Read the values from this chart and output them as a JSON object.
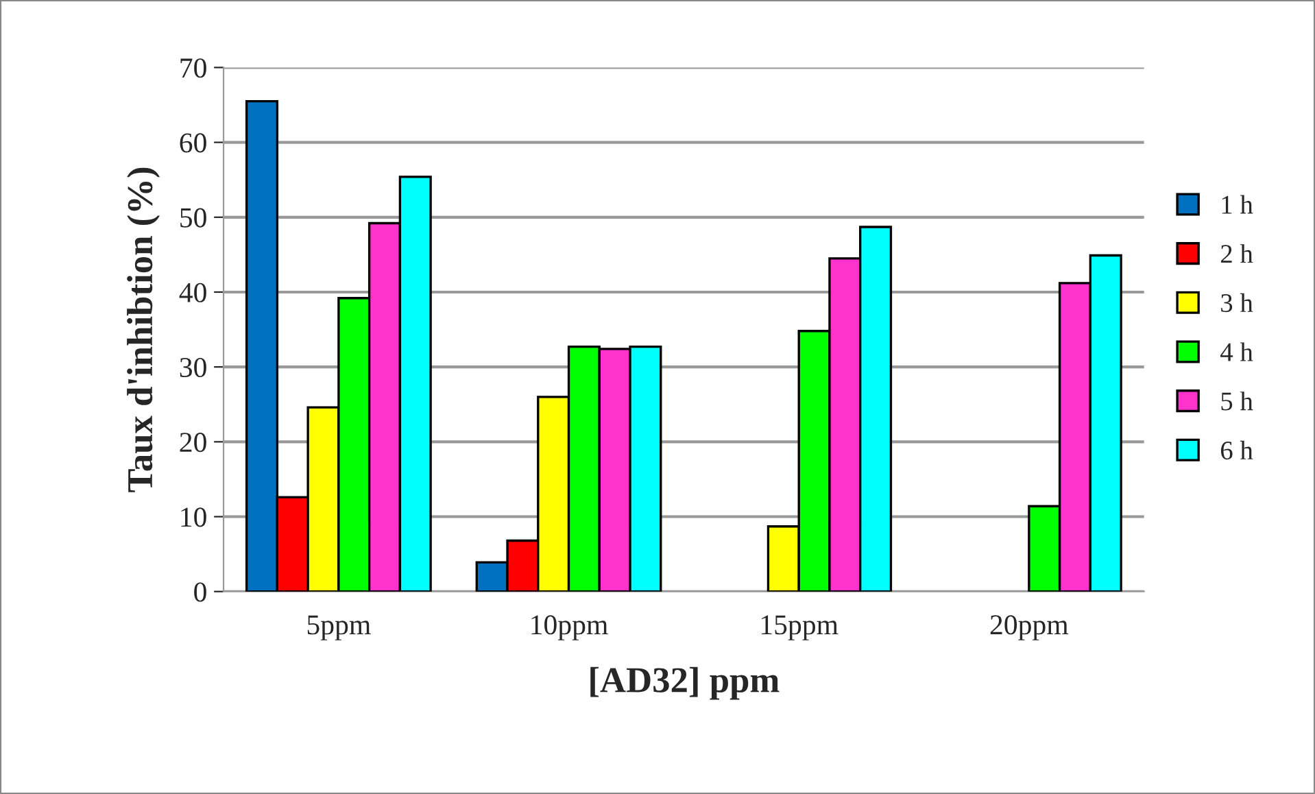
{
  "chart_data": {
    "type": "bar",
    "xlabel": "[AD32] ppm",
    "ylabel": "Taux d'inhibtion (%)",
    "categories": [
      "5ppm",
      "10ppm",
      "15ppm",
      "20ppm"
    ],
    "series": [
      {
        "name": "1 h",
        "color": "#0070c0",
        "values": [
          65.5,
          3.9,
          null,
          null
        ]
      },
      {
        "name": "2 h",
        "color": "#ff0000",
        "values": [
          12.6,
          6.8,
          null,
          null
        ]
      },
      {
        "name": "3 h",
        "color": "#ffff00",
        "values": [
          24.6,
          26.0,
          8.7,
          null
        ]
      },
      {
        "name": "4 h",
        "color": "#00ff00",
        "values": [
          39.2,
          32.7,
          34.8,
          11.4
        ]
      },
      {
        "name": "5 h",
        "color": "#ff33cc",
        "values": [
          49.2,
          32.4,
          44.5,
          41.2
        ]
      },
      {
        "name": "6 h",
        "color": "#00ffff",
        "values": [
          55.4,
          32.7,
          48.7,
          44.9
        ]
      }
    ],
    "ylim": [
      0,
      70
    ],
    "yticks": [
      0,
      10,
      20,
      30,
      40,
      50,
      60,
      70
    ],
    "grid": "y",
    "legend": "right"
  }
}
